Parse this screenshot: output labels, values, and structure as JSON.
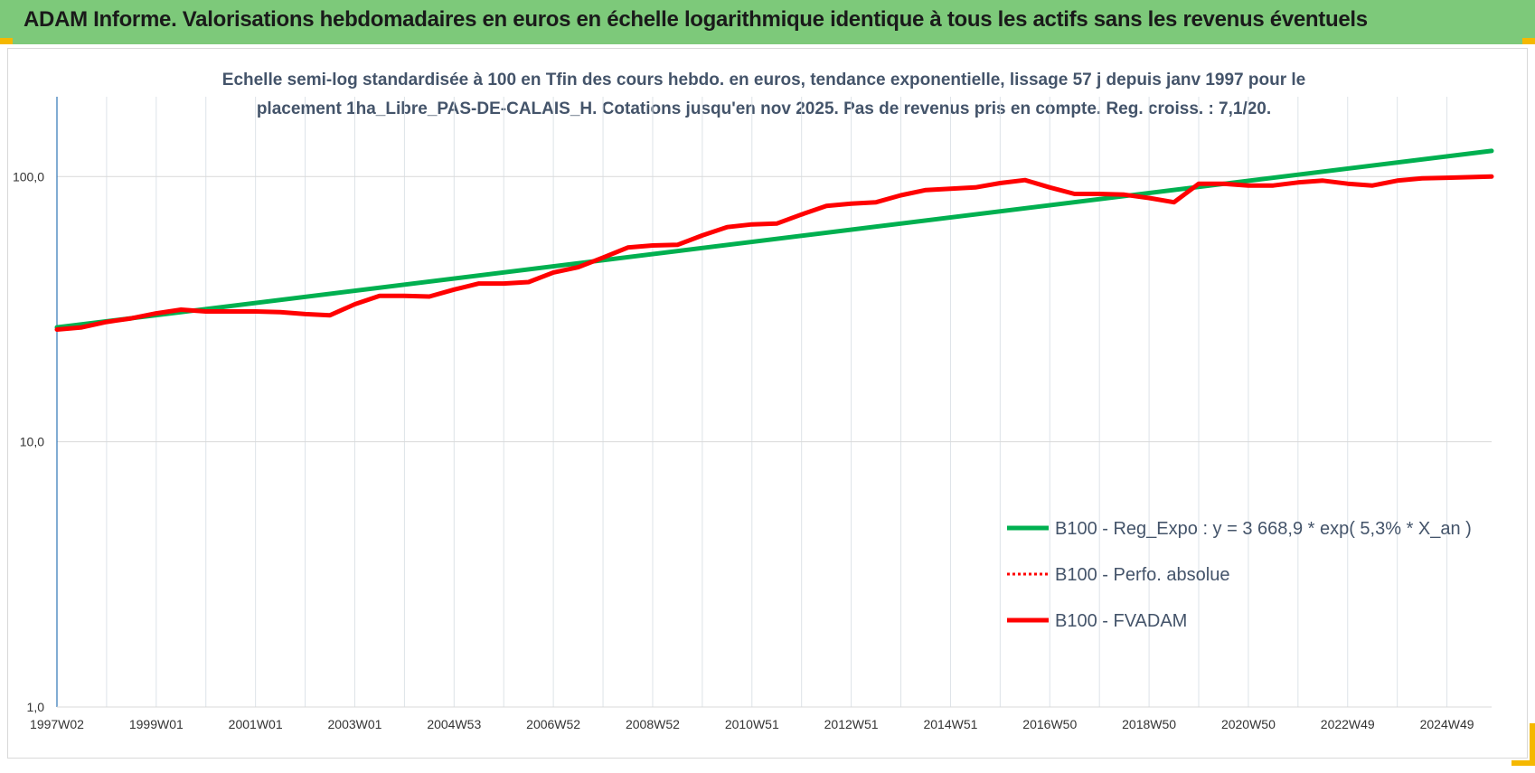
{
  "header": {
    "title": "ADAM Informe. Valorisations hebdomadaires en euros en échelle logarithmique identique à tous les actifs sans les revenus éventuels"
  },
  "chart_data": {
    "type": "line",
    "title_line1": "Echelle semi-log standardisée à 100 en Tfin des cours hebdo. en euros, tendance exponentielle, lissage 57 j depuis janv 1997 pour le",
    "title_line2": "placement 1ha_Libre_PAS-DE-CALAIS_H. Cotations jusqu'en nov 2025. Pas de revenus pris en compte. Reg. croiss. : 7,1/20.",
    "y_scale": "log",
    "ylim": [
      1,
      200
    ],
    "y_ticks": [
      1,
      10,
      100
    ],
    "y_tick_labels": [
      "1,0",
      "10,0",
      "100,0"
    ],
    "xlim": [
      1997.0,
      2025.9
    ],
    "x_tick_values": [
      1997.0,
      1999.0,
      2001.0,
      2003.0,
      2005.0,
      2007.0,
      2009.0,
      2011.0,
      2013.0,
      2015.0,
      2017.0,
      2019.0,
      2021.0,
      2023.0,
      2025.0
    ],
    "x_tick_labels": [
      "1997W02",
      "1999W01",
      "2001W01",
      "2003W01",
      "2004W53",
      "2006W52",
      "2008W52",
      "2010W51",
      "2012W51",
      "2014W51",
      "2016W50",
      "2018W50",
      "2020W50",
      "2022W49",
      "2024W49"
    ],
    "grid": true,
    "legend_position": "bottom-right",
    "series": [
      {
        "name": "B100 - Reg_Expo : y = 3 668,9 * exp( 5,3% *  X_an )",
        "color": "#00b050",
        "style": "solid",
        "x": [
          1997.0,
          2025.9
        ],
        "y": [
          27.0,
          125.0
        ]
      },
      {
        "name": "B100 - Perfo. absolue",
        "color": "#ff0000",
        "style": "dotted",
        "x": [],
        "y": []
      },
      {
        "name": "B100 - FVADAM",
        "color": "#ff0000",
        "style": "solid",
        "x": [
          1997.0,
          1997.5,
          1998.0,
          1998.5,
          1999.0,
          1999.5,
          2000.0,
          2000.5,
          2001.0,
          2001.5,
          2002.0,
          2002.5,
          2003.0,
          2003.5,
          2004.0,
          2004.5,
          2005.0,
          2005.5,
          2006.0,
          2006.5,
          2007.0,
          2007.5,
          2008.0,
          2008.5,
          2009.0,
          2009.5,
          2010.0,
          2010.5,
          2011.0,
          2011.5,
          2012.0,
          2012.5,
          2013.0,
          2013.5,
          2014.0,
          2014.5,
          2015.0,
          2015.5,
          2016.0,
          2016.5,
          2017.0,
          2017.5,
          2018.0,
          2018.5,
          2019.0,
          2019.5,
          2020.0,
          2020.5,
          2021.0,
          2021.5,
          2022.0,
          2022.5,
          2023.0,
          2023.5,
          2024.0,
          2024.5,
          2025.0,
          2025.5,
          2025.9
        ],
        "y": [
          26.5,
          27.0,
          28.3,
          29.2,
          30.5,
          31.5,
          31.0,
          31.0,
          31.0,
          30.8,
          30.3,
          30.0,
          33.0,
          35.5,
          35.5,
          35.3,
          37.5,
          39.5,
          39.5,
          40.0,
          43.5,
          45.5,
          49.5,
          54.0,
          55.0,
          55.3,
          60.0,
          64.5,
          66.0,
          66.5,
          72.0,
          77.5,
          79.0,
          80.0,
          85.0,
          89.0,
          90.0,
          91.0,
          94.5,
          97.0,
          91.0,
          86.0,
          86.0,
          85.5,
          83.0,
          80.0,
          94.0,
          94.0,
          92.5,
          92.5,
          95.0,
          96.5,
          94.0,
          92.5,
          96.5,
          98.5,
          99.0,
          99.5,
          100.0
        ]
      }
    ]
  }
}
